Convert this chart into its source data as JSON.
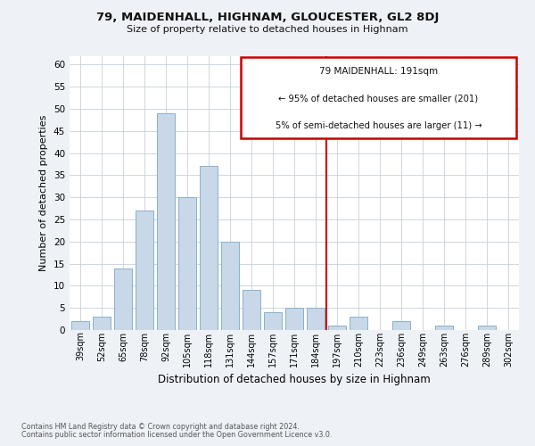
{
  "title": "79, MAIDENHALL, HIGHNAM, GLOUCESTER, GL2 8DJ",
  "subtitle": "Size of property relative to detached houses in Highnam",
  "xlabel": "Distribution of detached houses by size in Highnam",
  "ylabel": "Number of detached properties",
  "bar_color": "#c8d8e8",
  "bar_edge_color": "#8ab0cc",
  "categories": [
    "39sqm",
    "52sqm",
    "65sqm",
    "78sqm",
    "92sqm",
    "105sqm",
    "118sqm",
    "131sqm",
    "144sqm",
    "157sqm",
    "171sqm",
    "184sqm",
    "197sqm",
    "210sqm",
    "223sqm",
    "236sqm",
    "249sqm",
    "263sqm",
    "276sqm",
    "289sqm",
    "302sqm"
  ],
  "values": [
    2,
    3,
    14,
    27,
    49,
    30,
    37,
    20,
    9,
    4,
    5,
    5,
    1,
    3,
    0,
    2,
    0,
    1,
    0,
    1,
    0
  ],
  "ylim": [
    0,
    62
  ],
  "yticks": [
    0,
    5,
    10,
    15,
    20,
    25,
    30,
    35,
    40,
    45,
    50,
    55,
    60
  ],
  "vline_color": "#cc0000",
  "annotation_title": "79 MAIDENHALL: 191sqm",
  "annotation_line1": "← 95% of detached houses are smaller (201)",
  "annotation_line2": "5% of semi-detached houses are larger (11) →",
  "footer_line1": "Contains HM Land Registry data © Crown copyright and database right 2024.",
  "footer_line2": "Contains public sector information licensed under the Open Government Licence v3.0.",
  "bg_color": "#eef2f7",
  "plot_bg_color": "#ffffff",
  "grid_color": "#c8d0d8"
}
